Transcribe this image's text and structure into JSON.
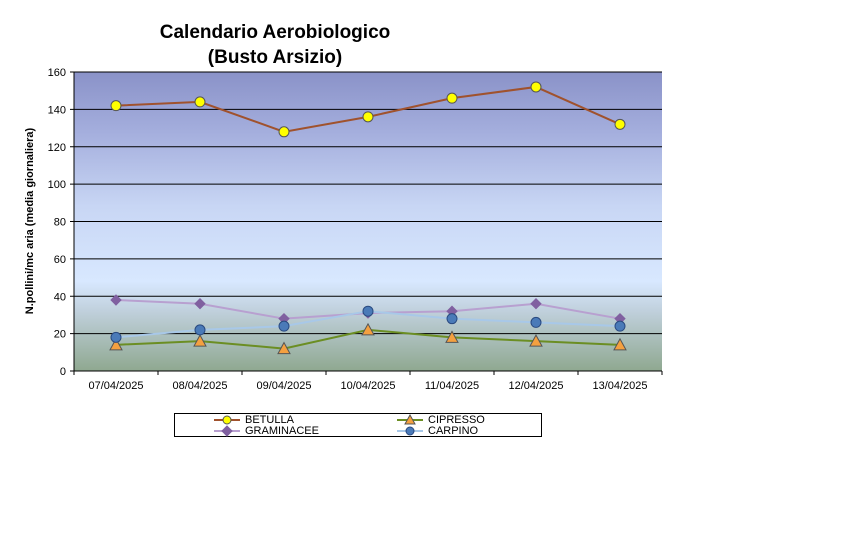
{
  "chart_data": {
    "type": "line",
    "title": [
      "Calendario Aerobiologico",
      "(Busto Arsizio)"
    ],
    "xlabel": "",
    "ylabel": "N.pollini/mc aria (media giornaliera)",
    "ylim": [
      0,
      160
    ],
    "yticks": [
      0,
      20,
      40,
      60,
      80,
      100,
      120,
      140,
      160
    ],
    "grid": true,
    "legend_position": "bottom",
    "categories": [
      "07/04/2025",
      "08/04/2025",
      "09/04/2025",
      "10/04/2025",
      "11/04/2025",
      "12/04/2025",
      "13/04/2025"
    ],
    "series": [
      {
        "name": "BETULLA",
        "values": [
          142,
          144,
          128,
          136,
          146,
          152,
          132
        ],
        "line_color": "#a0522d",
        "marker": "circle",
        "marker_color": "#ffff00"
      },
      {
        "name": "CIPRESSO",
        "values": [
          14,
          16,
          12,
          22,
          18,
          16,
          14
        ],
        "line_color": "#6b8e23",
        "marker": "triangle",
        "marker_color": "#f4a040"
      },
      {
        "name": "GRAMINACEE",
        "values": [
          38,
          36,
          28,
          31,
          32,
          36,
          28
        ],
        "line_color": "#b8a0d0",
        "marker": "diamond",
        "marker_color": "#8060a0"
      },
      {
        "name": "CARPINO",
        "values": [
          18,
          22,
          24,
          32,
          28,
          26,
          24
        ],
        "line_color": "#a8c8e8",
        "marker": "circle",
        "marker_color": "#4a7ab8"
      }
    ]
  }
}
